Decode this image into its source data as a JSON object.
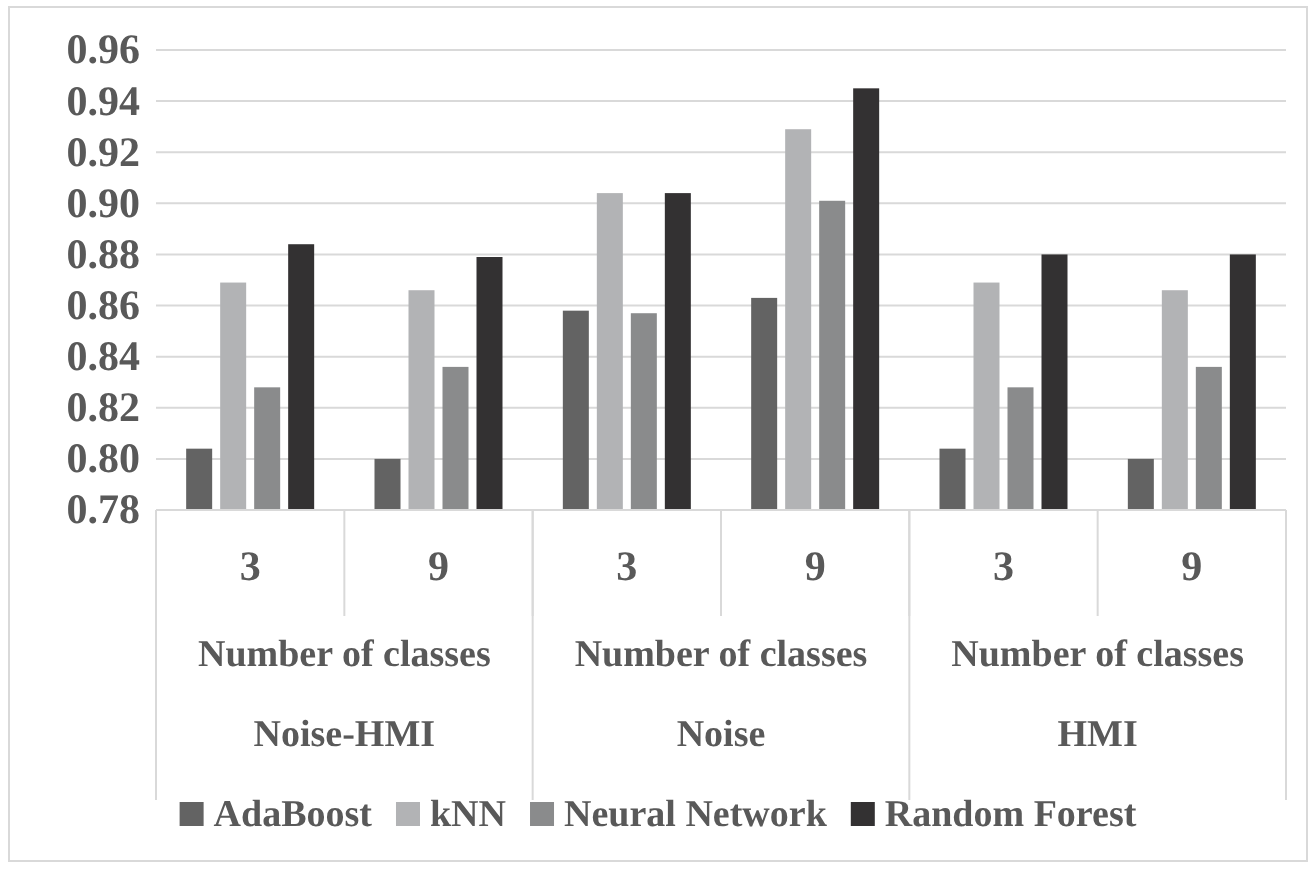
{
  "chart_data": {
    "type": "bar",
    "categories": [
      "3",
      "9",
      "3",
      "9",
      "3",
      "9"
    ],
    "series": [
      {
        "name": "AdaBoost",
        "color": "#636363",
        "values": [
          0.804,
          0.8,
          0.858,
          0.863,
          0.804,
          0.8
        ]
      },
      {
        "name": "kNN",
        "color": "#b2b3b5",
        "values": [
          0.869,
          0.866,
          0.904,
          0.929,
          0.869,
          0.866
        ]
      },
      {
        "name": "Neural Network",
        "color": "#8a8b8c",
        "values": [
          0.828,
          0.836,
          0.857,
          0.901,
          0.828,
          0.836
        ]
      },
      {
        "name": "Random Forest",
        "color": "#333132",
        "values": [
          0.884,
          0.879,
          0.904,
          0.945,
          0.88,
          0.88
        ]
      }
    ],
    "annotations": [
      "Number of classes",
      "Number of classes",
      "Number of classes",
      "Noise-HMI",
      "Noise",
      "HMI"
    ],
    "ylim": [
      0.78,
      0.96
    ],
    "yticks": [
      {
        "value": 0.78,
        "label": "0.78"
      },
      {
        "value": 0.8,
        "label": "0.80"
      },
      {
        "value": 0.82,
        "label": "0.82"
      },
      {
        "value": 0.84,
        "label": "0.84"
      },
      {
        "value": 0.86,
        "label": "0.86"
      },
      {
        "value": 0.88,
        "label": "0.88"
      },
      {
        "value": 0.9,
        "label": "0.90"
      },
      {
        "value": 0.92,
        "label": "0.92"
      },
      {
        "value": 0.94,
        "label": "0.94"
      },
      {
        "value": 0.96,
        "label": "0.96"
      }
    ],
    "grid": "y",
    "legend": "bottom"
  }
}
